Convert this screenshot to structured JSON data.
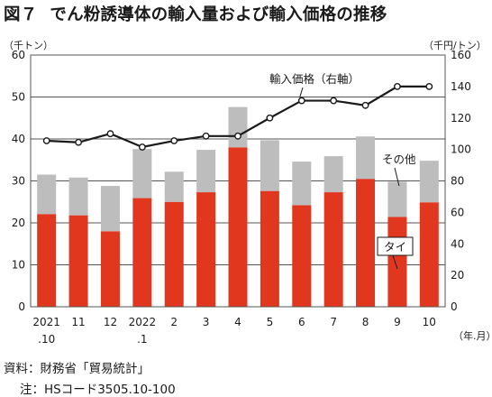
{
  "title": {
    "figure_label": "図７",
    "text": "でん粉誘導体の輸入量および輸入価格の推移"
  },
  "units": {
    "left_axis": "（千トン）",
    "right_axis": "（千円/トン）",
    "x_axis": "（年.月）"
  },
  "footer": {
    "source": "資料：財務省「貿易統計」",
    "note": "注：HSコード3505.10-100"
  },
  "colors": {
    "thai": "#e2371f",
    "other": "#bdbdbd",
    "line": "#1a1a1a",
    "grid": "#555555"
  },
  "chart_data": {
    "type": "bar",
    "stacked": true,
    "categories": [
      [
        "2021",
        ".10"
      ],
      [
        "11",
        ""
      ],
      [
        "12",
        ""
      ],
      [
        "2022",
        ".1"
      ],
      [
        "2",
        ""
      ],
      [
        "3",
        ""
      ],
      [
        "4",
        ""
      ],
      [
        "5",
        ""
      ],
      [
        "6",
        ""
      ],
      [
        "7",
        ""
      ],
      [
        "8",
        ""
      ],
      [
        "9",
        ""
      ],
      [
        "10",
        ""
      ]
    ],
    "series": [
      {
        "name": "タイ",
        "values": [
          22.1,
          21.8,
          18.0,
          25.9,
          25.0,
          27.3,
          38.0,
          27.6,
          24.2,
          27.3,
          30.5,
          21.4,
          24.9
        ]
      },
      {
        "name": "その他",
        "values": [
          9.4,
          9.0,
          10.8,
          11.7,
          7.2,
          10.1,
          9.6,
          12.1,
          10.4,
          8.6,
          10.1,
          8.4,
          9.9
        ]
      }
    ],
    "line_series": {
      "name": "輸入価格（右軸）",
      "axis": "right",
      "values": [
        105.5,
        104.5,
        110.0,
        101.5,
        105.5,
        108.5,
        108.5,
        120.0,
        131.0,
        131.0,
        128.0,
        140.0,
        140.0
      ]
    },
    "y_left": {
      "min": 0,
      "max": 60,
      "ticks": [
        0,
        10,
        20,
        30,
        40,
        50,
        60
      ]
    },
    "y_right": {
      "min": 0,
      "max": 160,
      "ticks": [
        0,
        20,
        40,
        60,
        80,
        100,
        120,
        140,
        160
      ]
    },
    "grid": true
  }
}
